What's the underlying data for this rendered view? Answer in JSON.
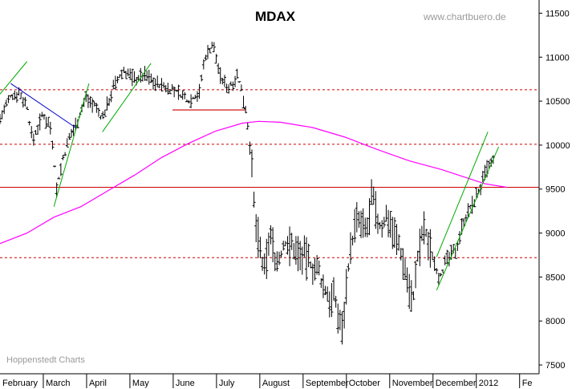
{
  "chart_data": {
    "type": "ohlc",
    "title": "MDAX",
    "watermark": "www.chartbuero.de",
    "credit": "Hoppenstedt Charts",
    "ylim": [
      7400,
      11650
    ],
    "y_ticks": [
      11500,
      11000,
      10500,
      10000,
      9500,
      9000,
      8500,
      8000,
      7500
    ],
    "x_labels": [
      "February",
      "March",
      "April",
      "May",
      "June",
      "July",
      "August",
      "September",
      "October",
      "November",
      "December",
      "2012",
      "Fe"
    ],
    "colors": {
      "bars": "#000000",
      "ma_line": "#ff00ff",
      "support_lines": "#cc0000",
      "up_channel": "#00aa00",
      "down_trend": "#0000cc"
    },
    "horizontal_levels": [
      {
        "value": 10630,
        "style": "dashed"
      },
      {
        "value": 10010,
        "style": "dashed"
      },
      {
        "value": 9520,
        "style": "solid"
      },
      {
        "value": 8720,
        "style": "dashed"
      }
    ],
    "support_segment": {
      "value": 10400,
      "x_start": 0.32,
      "x_end": 0.455
    },
    "moving_average": [
      {
        "t": 0.0,
        "v": 8880
      },
      {
        "t": 0.05,
        "v": 9000
      },
      {
        "t": 0.1,
        "v": 9180
      },
      {
        "t": 0.15,
        "v": 9300
      },
      {
        "t": 0.2,
        "v": 9480
      },
      {
        "t": 0.25,
        "v": 9660
      },
      {
        "t": 0.3,
        "v": 9860
      },
      {
        "t": 0.35,
        "v": 10020
      },
      {
        "t": 0.4,
        "v": 10160
      },
      {
        "t": 0.45,
        "v": 10250
      },
      {
        "t": 0.48,
        "v": 10270
      },
      {
        "t": 0.52,
        "v": 10260
      },
      {
        "t": 0.58,
        "v": 10200
      },
      {
        "t": 0.64,
        "v": 10090
      },
      {
        "t": 0.7,
        "v": 9950
      },
      {
        "t": 0.76,
        "v": 9820
      },
      {
        "t": 0.82,
        "v": 9720
      },
      {
        "t": 0.86,
        "v": 9640
      },
      {
        "t": 0.9,
        "v": 9560
      },
      {
        "t": 0.94,
        "v": 9520
      }
    ],
    "trend_lines": [
      {
        "color": "up_channel",
        "from": {
          "t": 0.0,
          "v": 10580
        },
        "to": {
          "t": 0.05,
          "v": 10950
        }
      },
      {
        "color": "up_channel",
        "from": {
          "t": 0.1,
          "v": 9300
        },
        "to": {
          "t": 0.165,
          "v": 10700
        }
      },
      {
        "color": "up_channel",
        "from": {
          "t": 0.19,
          "v": 10150
        },
        "to": {
          "t": 0.28,
          "v": 10930
        }
      },
      {
        "color": "down_trend",
        "from": {
          "t": 0.02,
          "v": 10700
        },
        "to": {
          "t": 0.14,
          "v": 10200
        }
      },
      {
        "color": "up_channel",
        "from": {
          "t": 0.81,
          "v": 8730
        },
        "to": {
          "t": 0.905,
          "v": 10150
        }
      },
      {
        "color": "up_channel",
        "from": {
          "t": 0.81,
          "v": 8350
        },
        "to": {
          "t": 0.925,
          "v": 9980
        }
      }
    ],
    "series_keypoints": [
      {
        "t": 0.0,
        "v": 10300
      },
      {
        "t": 0.02,
        "v": 10550
      },
      {
        "t": 0.035,
        "v": 10600
      },
      {
        "t": 0.05,
        "v": 10450
      },
      {
        "t": 0.06,
        "v": 10050
      },
      {
        "t": 0.08,
        "v": 10350
      },
      {
        "t": 0.095,
        "v": 10200
      },
      {
        "t": 0.105,
        "v": 9500
      },
      {
        "t": 0.115,
        "v": 9800
      },
      {
        "t": 0.13,
        "v": 10100
      },
      {
        "t": 0.145,
        "v": 10300
      },
      {
        "t": 0.16,
        "v": 10550
      },
      {
        "t": 0.175,
        "v": 10450
      },
      {
        "t": 0.19,
        "v": 10300
      },
      {
        "t": 0.21,
        "v": 10650
      },
      {
        "t": 0.23,
        "v": 10850
      },
      {
        "t": 0.25,
        "v": 10750
      },
      {
        "t": 0.27,
        "v": 10800
      },
      {
        "t": 0.29,
        "v": 10700
      },
      {
        "t": 0.31,
        "v": 10650
      },
      {
        "t": 0.33,
        "v": 10600
      },
      {
        "t": 0.35,
        "v": 10500
      },
      {
        "t": 0.37,
        "v": 10600
      },
      {
        "t": 0.38,
        "v": 11000
      },
      {
        "t": 0.395,
        "v": 11150
      },
      {
        "t": 0.41,
        "v": 10750
      },
      {
        "t": 0.425,
        "v": 10650
      },
      {
        "t": 0.44,
        "v": 10800
      },
      {
        "t": 0.455,
        "v": 10450
      },
      {
        "t": 0.465,
        "v": 9950
      },
      {
        "t": 0.472,
        "v": 9200
      },
      {
        "t": 0.48,
        "v": 8900
      },
      {
        "t": 0.49,
        "v": 8500
      },
      {
        "t": 0.5,
        "v": 9000
      },
      {
        "t": 0.515,
        "v": 8650
      },
      {
        "t": 0.53,
        "v": 8900
      },
      {
        "t": 0.55,
        "v": 8800
      },
      {
        "t": 0.57,
        "v": 8700
      },
      {
        "t": 0.59,
        "v": 8550
      },
      {
        "t": 0.605,
        "v": 8300
      },
      {
        "t": 0.62,
        "v": 8250
      },
      {
        "t": 0.635,
        "v": 7900
      },
      {
        "t": 0.645,
        "v": 8600
      },
      {
        "t": 0.66,
        "v": 9150
      },
      {
        "t": 0.68,
        "v": 9000
      },
      {
        "t": 0.69,
        "v": 9400
      },
      {
        "t": 0.705,
        "v": 9050
      },
      {
        "t": 0.72,
        "v": 9200
      },
      {
        "t": 0.735,
        "v": 8950
      },
      {
        "t": 0.75,
        "v": 8650
      },
      {
        "t": 0.765,
        "v": 8200
      },
      {
        "t": 0.775,
        "v": 8700
      },
      {
        "t": 0.785,
        "v": 9050
      },
      {
        "t": 0.8,
        "v": 8800
      },
      {
        "t": 0.815,
        "v": 8500
      },
      {
        "t": 0.83,
        "v": 8700
      },
      {
        "t": 0.845,
        "v": 8800
      },
      {
        "t": 0.86,
        "v": 9150
      },
      {
        "t": 0.875,
        "v": 9300
      },
      {
        "t": 0.89,
        "v": 9500
      },
      {
        "t": 0.905,
        "v": 9750
      },
      {
        "t": 0.915,
        "v": 9800
      }
    ]
  }
}
